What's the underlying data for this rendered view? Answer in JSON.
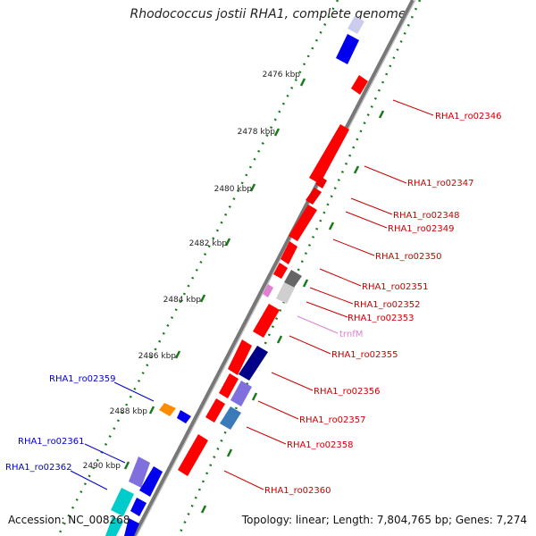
{
  "title": "Rhodococcus jostii RHA1, complete genome",
  "footer": {
    "accession": "Accession: NC_008268",
    "summary": "Topology: linear; Length: 7,804,765 bp; Genes: 7,274"
  },
  "ticks": [
    {
      "label": "2476 kbp"
    },
    {
      "label": "2478 kbp"
    },
    {
      "label": "2480 kbp"
    },
    {
      "label": "2482 kbp"
    },
    {
      "label": "2484 kbp"
    },
    {
      "label": "2486 kbp"
    },
    {
      "label": "2488 kbp"
    },
    {
      "label": "2490 kbp"
    }
  ],
  "gene_labels": [
    {
      "text": "RHA1_ro02346",
      "color": "#cc0000"
    },
    {
      "text": "RHA1_ro02347",
      "color": "#cc0000"
    },
    {
      "text": "RHA1_ro02348",
      "color": "#cc0000"
    },
    {
      "text": "RHA1_ro02349",
      "color": "#cc0000"
    },
    {
      "text": "RHA1_ro02350",
      "color": "#cc0000"
    },
    {
      "text": "RHA1_ro02351",
      "color": "#cc0000"
    },
    {
      "text": "RHA1_ro02352",
      "color": "#cc0000"
    },
    {
      "text": "RHA1_ro02353",
      "color": "#cc0000"
    },
    {
      "text": "trnfM",
      "color": "#e080d0"
    },
    {
      "text": "RHA1_ro02355",
      "color": "#cc0000"
    },
    {
      "text": "RHA1_ro02356",
      "color": "#cc0000"
    },
    {
      "text": "RHA1_ro02357",
      "color": "#cc0000"
    },
    {
      "text": "RHA1_ro02358",
      "color": "#cc0000"
    },
    {
      "text": "RHA1_ro02360",
      "color": "#cc0000"
    },
    {
      "text": "RHA1_ro02359",
      "color": "#0000cc"
    },
    {
      "text": "RHA1_ro02361",
      "color": "#0000cc"
    },
    {
      "text": "RHA1_ro02362",
      "color": "#0000cc"
    }
  ],
  "colors": {
    "forward_gene": "#ff0000",
    "reverse_gene": "#0000ff",
    "backbone": "#777777",
    "tick": "#1a7a1a",
    "rna": "#e080d0",
    "orange_gene": "#ff8c00",
    "teal_gene": "#00cccc"
  }
}
